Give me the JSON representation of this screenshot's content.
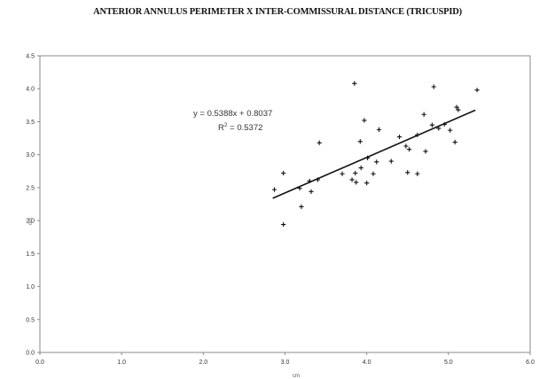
{
  "chart_data": {
    "type": "scatter",
    "title": "ANTERIOR ANNULUS PERIMETER X INTER-COMMISSURAL DISTANCE (TRICUSPID)",
    "xlabel": "cm",
    "ylabel": "cm",
    "xlim": [
      0.0,
      6.0
    ],
    "ylim": [
      0.0,
      4.5
    ],
    "x_ticks": [
      "0.0",
      "1.0",
      "2.0",
      "3.0",
      "4.0",
      "5.0",
      "6.0"
    ],
    "y_ticks": [
      "0.0",
      "0.5",
      "1.0",
      "1.5",
      "2.0",
      "2.5",
      "3.0",
      "3.5",
      "4.0",
      "4.5"
    ],
    "grid": false,
    "points": [
      {
        "x": 2.87,
        "y": 2.47
      },
      {
        "x": 2.98,
        "y": 2.72
      },
      {
        "x": 2.98,
        "y": 1.94
      },
      {
        "x": 3.18,
        "y": 2.49
      },
      {
        "x": 3.2,
        "y": 2.21
      },
      {
        "x": 3.3,
        "y": 2.6
      },
      {
        "x": 3.32,
        "y": 2.44
      },
      {
        "x": 3.4,
        "y": 2.62
      },
      {
        "x": 3.42,
        "y": 3.18
      },
      {
        "x": 3.7,
        "y": 2.71
      },
      {
        "x": 3.82,
        "y": 2.62
      },
      {
        "x": 3.85,
        "y": 4.08
      },
      {
        "x": 3.86,
        "y": 2.72
      },
      {
        "x": 3.87,
        "y": 2.58
      },
      {
        "x": 3.92,
        "y": 3.2
      },
      {
        "x": 3.93,
        "y": 2.8
      },
      {
        "x": 3.97,
        "y": 3.52
      },
      {
        "x": 4.0,
        "y": 2.57
      },
      {
        "x": 4.01,
        "y": 2.95
      },
      {
        "x": 4.08,
        "y": 2.71
      },
      {
        "x": 4.12,
        "y": 2.89
      },
      {
        "x": 4.15,
        "y": 3.38
      },
      {
        "x": 4.3,
        "y": 2.9
      },
      {
        "x": 4.4,
        "y": 3.27
      },
      {
        "x": 4.48,
        "y": 3.13
      },
      {
        "x": 4.5,
        "y": 2.73
      },
      {
        "x": 4.52,
        "y": 3.08
      },
      {
        "x": 4.62,
        "y": 3.3
      },
      {
        "x": 4.62,
        "y": 2.71
      },
      {
        "x": 4.7,
        "y": 3.61
      },
      {
        "x": 4.72,
        "y": 3.05
      },
      {
        "x": 4.8,
        "y": 3.45
      },
      {
        "x": 4.82,
        "y": 4.03
      },
      {
        "x": 4.88,
        "y": 3.4
      },
      {
        "x": 4.95,
        "y": 3.46
      },
      {
        "x": 5.02,
        "y": 3.37
      },
      {
        "x": 5.08,
        "y": 3.19
      },
      {
        "x": 5.1,
        "y": 3.72
      },
      {
        "x": 5.12,
        "y": 3.68
      },
      {
        "x": 5.35,
        "y": 3.98
      }
    ],
    "trendline": {
      "slope": 0.5388,
      "intercept": 0.8037,
      "x_range": [
        2.85,
        5.33
      ]
    },
    "annotations": {
      "equation": "y = 0.5388x + 0.8037",
      "r_squared_prefix": "R",
      "r_squared_exponent": "2",
      "r_squared_value": " = 0.5372"
    }
  }
}
